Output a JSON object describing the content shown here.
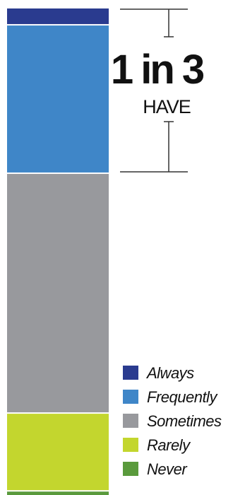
{
  "chart_data": {
    "type": "bar",
    "stacked": true,
    "orientation": "vertical",
    "categories": [
      ""
    ],
    "series": [
      {
        "name": "Always",
        "values": [
          3.5
        ],
        "color": "#2a3b8f"
      },
      {
        "name": "Frequently",
        "values": [
          30.5
        ],
        "color": "#3f86c8"
      },
      {
        "name": "Sometimes",
        "values": [
          49.3
        ],
        "color": "#98999d"
      },
      {
        "name": "Rarely",
        "values": [
          16.0
        ],
        "color": "#c3d62e"
      },
      {
        "name": "Never",
        "values": [
          0.7
        ],
        "color": "#5a9a3c"
      }
    ],
    "ylim": [
      0,
      100
    ],
    "title": "",
    "xlabel": "",
    "ylabel": "",
    "legend_position": "bottom-right",
    "grid": false,
    "annotation": {
      "headline": "1 in 3",
      "subline": "HAVE",
      "bracket_covers": [
        "Always",
        "Frequently"
      ]
    }
  }
}
